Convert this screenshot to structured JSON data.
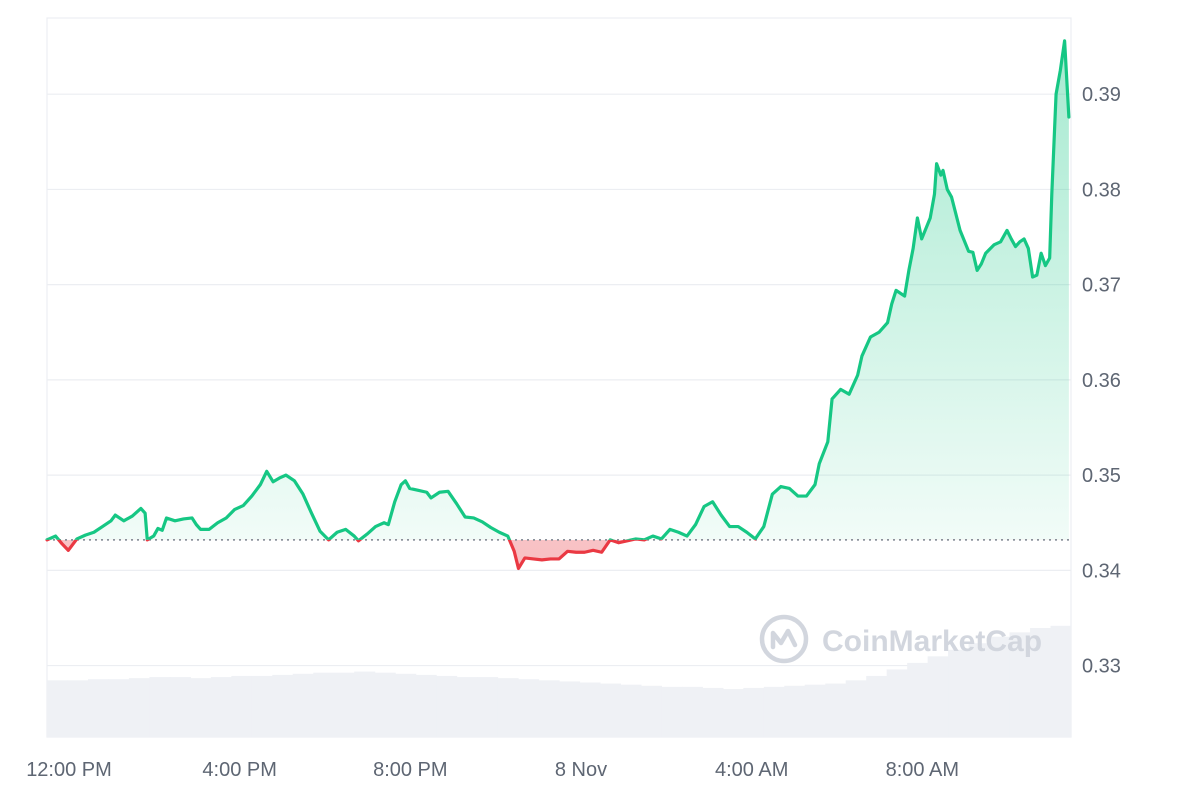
{
  "chart_data": {
    "type": "line",
    "title": "",
    "xlabel": "",
    "ylabel": "",
    "ylim": [
      0.3225,
      0.398
    ],
    "baseline": 0.3432,
    "grid": true,
    "legend": "none",
    "colors": {
      "up": "#16c784",
      "down": "#ea3943",
      "grid": "#eceef2",
      "volume": "#eff1f5",
      "axis_text": "#5e6673",
      "baseline": "#7b828e"
    },
    "y_ticks": [
      {
        "value": 0.33,
        "label": "0.33"
      },
      {
        "value": 0.34,
        "label": "0.34"
      },
      {
        "value": 0.35,
        "label": "0.35"
      },
      {
        "value": 0.36,
        "label": "0.36"
      },
      {
        "value": 0.37,
        "label": "0.37"
      },
      {
        "value": 0.38,
        "label": "0.38"
      },
      {
        "value": 0.39,
        "label": "0.39"
      }
    ],
    "x_ticks": [
      {
        "hour": 0,
        "label": "12:00 PM"
      },
      {
        "hour": 4,
        "label": "4:00 PM"
      },
      {
        "hour": 8,
        "label": "8:00 PM"
      },
      {
        "hour": 12,
        "label": "8 Nov"
      },
      {
        "hour": 16,
        "label": "4:00 AM"
      },
      {
        "hour": 20,
        "label": "8:00 AM"
      }
    ],
    "x_range_hours": [
      0,
      24
    ],
    "series": [
      {
        "points": [
          [
            0.0,
            0.3432
          ],
          [
            0.2,
            0.3436
          ],
          [
            0.35,
            0.3428
          ],
          [
            0.5,
            0.3421
          ],
          [
            0.7,
            0.3433
          ],
          [
            0.9,
            0.3437
          ],
          [
            1.1,
            0.344
          ],
          [
            1.3,
            0.3446
          ],
          [
            1.5,
            0.3452
          ],
          [
            1.6,
            0.3458
          ],
          [
            1.8,
            0.3452
          ],
          [
            2.0,
            0.3457
          ],
          [
            2.2,
            0.3465
          ],
          [
            2.3,
            0.346
          ],
          [
            2.35,
            0.3432
          ],
          [
            2.5,
            0.3436
          ],
          [
            2.6,
            0.3444
          ],
          [
            2.7,
            0.3442
          ],
          [
            2.8,
            0.3455
          ],
          [
            3.0,
            0.3452
          ],
          [
            3.2,
            0.3454
          ],
          [
            3.4,
            0.3455
          ],
          [
            3.5,
            0.3448
          ],
          [
            3.6,
            0.3443
          ],
          [
            3.8,
            0.3443
          ],
          [
            4.0,
            0.345
          ],
          [
            4.2,
            0.3455
          ],
          [
            4.4,
            0.3464
          ],
          [
            4.6,
            0.3468
          ],
          [
            4.8,
            0.3478
          ],
          [
            5.0,
            0.349
          ],
          [
            5.15,
            0.3504
          ],
          [
            5.3,
            0.3493
          ],
          [
            5.45,
            0.3497
          ],
          [
            5.6,
            0.35
          ],
          [
            5.8,
            0.3494
          ],
          [
            6.0,
            0.348
          ],
          [
            6.2,
            0.346
          ],
          [
            6.4,
            0.3441
          ],
          [
            6.6,
            0.3432
          ],
          [
            6.8,
            0.344
          ],
          [
            7.0,
            0.3443
          ],
          [
            7.2,
            0.3436
          ],
          [
            7.3,
            0.3431
          ],
          [
            7.5,
            0.3438
          ],
          [
            7.7,
            0.3446
          ],
          [
            7.9,
            0.345
          ],
          [
            8.0,
            0.3448
          ],
          [
            8.15,
            0.3472
          ],
          [
            8.3,
            0.349
          ],
          [
            8.4,
            0.3494
          ],
          [
            8.5,
            0.3486
          ],
          [
            8.7,
            0.3484
          ],
          [
            8.9,
            0.3482
          ],
          [
            9.0,
            0.3476
          ],
          [
            9.2,
            0.3482
          ],
          [
            9.4,
            0.3483
          ],
          [
            9.6,
            0.347
          ],
          [
            9.8,
            0.3456
          ],
          [
            10.0,
            0.3455
          ],
          [
            10.2,
            0.3451
          ],
          [
            10.4,
            0.3445
          ],
          [
            10.6,
            0.344
          ],
          [
            10.8,
            0.3436
          ],
          [
            10.95,
            0.342
          ],
          [
            11.05,
            0.3402
          ],
          [
            11.2,
            0.3413
          ],
          [
            11.4,
            0.3412
          ],
          [
            11.6,
            0.3411
          ],
          [
            11.8,
            0.3412
          ],
          [
            12.0,
            0.3412
          ],
          [
            12.2,
            0.342
          ],
          [
            12.4,
            0.3419
          ],
          [
            12.6,
            0.3419
          ],
          [
            12.8,
            0.3421
          ],
          [
            13.0,
            0.3419
          ],
          [
            13.2,
            0.3432
          ],
          [
            13.4,
            0.3429
          ],
          [
            13.6,
            0.3431
          ],
          [
            13.8,
            0.3433
          ],
          [
            14.0,
            0.3432
          ],
          [
            14.2,
            0.3436
          ],
          [
            14.4,
            0.3433
          ],
          [
            14.6,
            0.3443
          ],
          [
            14.8,
            0.344
          ],
          [
            15.0,
            0.3436
          ],
          [
            15.2,
            0.3448
          ],
          [
            15.4,
            0.3467
          ],
          [
            15.6,
            0.3472
          ],
          [
            15.8,
            0.3458
          ],
          [
            16.0,
            0.3446
          ],
          [
            16.2,
            0.3446
          ],
          [
            16.4,
            0.344
          ],
          [
            16.6,
            0.3433
          ],
          [
            16.8,
            0.3446
          ],
          [
            17.0,
            0.348
          ],
          [
            17.2,
            0.3488
          ],
          [
            17.4,
            0.3486
          ],
          [
            17.6,
            0.3478
          ],
          [
            17.8,
            0.3478
          ],
          [
            18.0,
            0.349
          ],
          [
            18.1,
            0.3512
          ],
          [
            18.3,
            0.3535
          ],
          [
            18.4,
            0.358
          ],
          [
            18.6,
            0.359
          ],
          [
            18.8,
            0.3585
          ],
          [
            19.0,
            0.3605
          ],
          [
            19.1,
            0.3625
          ],
          [
            19.3,
            0.3645
          ],
          [
            19.5,
            0.365
          ],
          [
            19.7,
            0.366
          ],
          [
            19.8,
            0.368
          ],
          [
            19.9,
            0.3694
          ],
          [
            20.1,
            0.3688
          ],
          [
            20.2,
            0.3715
          ],
          [
            20.3,
            0.3738
          ],
          [
            20.4,
            0.377
          ],
          [
            20.5,
            0.3748
          ],
          [
            20.7,
            0.377
          ],
          [
            20.8,
            0.3795
          ],
          [
            20.85,
            0.3827
          ],
          [
            20.95,
            0.3815
          ],
          [
            21.0,
            0.382
          ],
          [
            21.1,
            0.38
          ],
          [
            21.2,
            0.3792
          ],
          [
            21.4,
            0.3757
          ],
          [
            21.6,
            0.3735
          ],
          [
            21.7,
            0.3734
          ],
          [
            21.8,
            0.3715
          ],
          [
            21.9,
            0.3722
          ],
          [
            22.0,
            0.3733
          ],
          [
            22.2,
            0.3742
          ],
          [
            22.35,
            0.3745
          ],
          [
            22.5,
            0.3757
          ],
          [
            22.6,
            0.3748
          ],
          [
            22.7,
            0.374
          ],
          [
            22.8,
            0.3745
          ],
          [
            22.9,
            0.3748
          ],
          [
            23.0,
            0.3738
          ],
          [
            23.1,
            0.3708
          ],
          [
            23.2,
            0.371
          ],
          [
            23.3,
            0.3733
          ],
          [
            23.4,
            0.372
          ],
          [
            23.5,
            0.3728
          ],
          [
            23.55,
            0.3795
          ],
          [
            23.65,
            0.39
          ],
          [
            23.75,
            0.3925
          ],
          [
            23.85,
            0.3956
          ],
          [
            23.95,
            0.3876
          ]
        ]
      }
    ],
    "volume": [
      0.52,
      0.52,
      0.53,
      0.53,
      0.54,
      0.55,
      0.55,
      0.54,
      0.55,
      0.56,
      0.56,
      0.57,
      0.58,
      0.59,
      0.59,
      0.6,
      0.59,
      0.58,
      0.57,
      0.56,
      0.55,
      0.55,
      0.54,
      0.53,
      0.52,
      0.51,
      0.5,
      0.49,
      0.48,
      0.47,
      0.46,
      0.46,
      0.45,
      0.44,
      0.45,
      0.46,
      0.47,
      0.48,
      0.49,
      0.52,
      0.56,
      0.62,
      0.68,
      0.74,
      0.8,
      0.86,
      0.92,
      0.96,
      1.0,
      1.02
    ]
  },
  "watermark": {
    "text": "CoinMarketCap",
    "icon": "coinmarketcap-logo-icon"
  }
}
